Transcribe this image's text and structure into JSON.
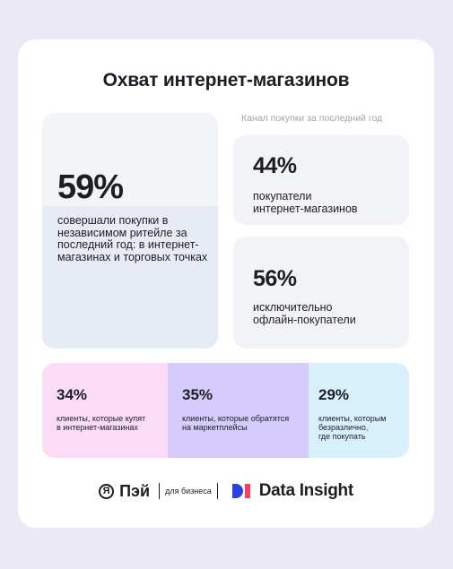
{
  "title": "Охват интернет-магазинов",
  "main_stat": {
    "percent": "59%",
    "description": "совершали покупки в независимом ритейле за последний год: в интернет-магазинах и торговых точках"
  },
  "channel": {
    "subtitle": "Канал покупки за последний год",
    "items": [
      {
        "percent": "44%",
        "label_line1": "покупатели",
        "label_line2": "интернет-магазинов"
      },
      {
        "percent": "56%",
        "label_line1": "исключительно",
        "label_line2": "офлайн-покупатели"
      }
    ]
  },
  "segments": [
    {
      "percent": "34%",
      "line1": "клиенты, которые купят",
      "line2": "в интернет-магазинах",
      "line3": ""
    },
    {
      "percent": "35%",
      "line1": "клиенты, которые обратятся",
      "line2": "на маркетплейсы",
      "line3": ""
    },
    {
      "percent": "29%",
      "line1": "клиенты, которым",
      "line2": "безразлично,",
      "line3": "где покупать"
    }
  ],
  "footer": {
    "ya_logo": "Я",
    "pay_label": "Пэй",
    "business_label": "для бизнеса",
    "partner_label": "Data Insight"
  },
  "colors": {
    "background": "#ece9f6",
    "segment_pink": "#fbdcf6",
    "segment_violet": "#d6ccfb",
    "segment_blue": "#d8f0fc",
    "di_blue": "#2a3fe6",
    "di_red": "#ff3d5a"
  }
}
